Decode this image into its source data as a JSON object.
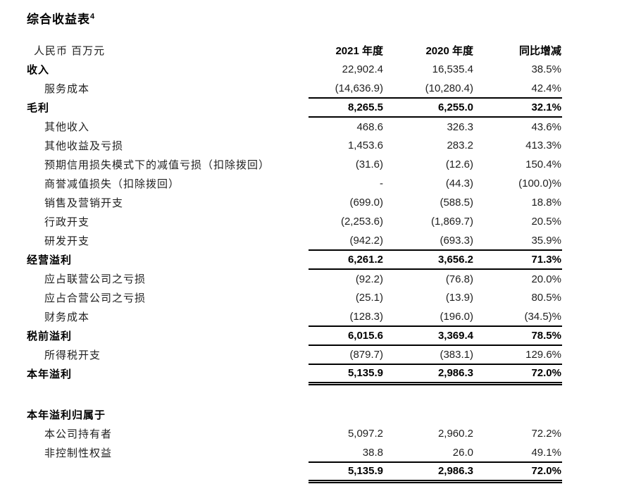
{
  "page": {
    "background": "#ffffff",
    "text_color": "#1f1f1f",
    "emphasis_color": "#000000",
    "rule_color": "#000000"
  },
  "title": {
    "text": "综合收益表",
    "superscript": "4"
  },
  "table": {
    "unit_label": "人民币 百万元",
    "columns": [
      "2021 年度",
      "2020 年度",
      "同比增减"
    ],
    "rows": [
      {
        "label": "收入",
        "v2021": "22,902.4",
        "v2020": "16,535.4",
        "yoy": "38.5%",
        "cls": "section",
        "rule": ""
      },
      {
        "label": "服务成本",
        "v2021": "(14,636.9)",
        "v2020": "(10,280.4)",
        "yoy": "42.4%",
        "cls": "sub",
        "rule": "single"
      },
      {
        "label": "毛利",
        "v2021": "8,265.5",
        "v2020": "6,255.0",
        "yoy": "32.1%",
        "cls": "total",
        "rule": "single"
      },
      {
        "label": "其他收入",
        "v2021": "468.6",
        "v2020": "326.3",
        "yoy": "43.6%",
        "cls": "sub",
        "rule": ""
      },
      {
        "label": "其他收益及亏损",
        "v2021": "1,453.6",
        "v2020": "283.2",
        "yoy": "413.3%",
        "cls": "sub",
        "rule": ""
      },
      {
        "label": "预期信用损失模式下的减值亏损（扣除拨回）",
        "v2021": "(31.6)",
        "v2020": "(12.6)",
        "yoy": "150.4%",
        "cls": "sub",
        "rule": ""
      },
      {
        "label": "商誉减值损失（扣除拨回）",
        "v2021": "-",
        "v2020": "(44.3)",
        "yoy": "(100.0)%",
        "cls": "sub",
        "rule": ""
      },
      {
        "label": "销售及营销开支",
        "v2021": "(699.0)",
        "v2020": "(588.5)",
        "yoy": "18.8%",
        "cls": "sub",
        "rule": ""
      },
      {
        "label": "行政开支",
        "v2021": "(2,253.6)",
        "v2020": "(1,869.7)",
        "yoy": "20.5%",
        "cls": "sub",
        "rule": ""
      },
      {
        "label": "研发开支",
        "v2021": "(942.2)",
        "v2020": "(693.3)",
        "yoy": "35.9%",
        "cls": "sub",
        "rule": "single"
      },
      {
        "label": "经营溢利",
        "v2021": "6,261.2",
        "v2020": "3,656.2",
        "yoy": "71.3%",
        "cls": "total",
        "rule": "single"
      },
      {
        "label": "应占联营公司之亏损",
        "v2021": "(92.2)",
        "v2020": "(76.8)",
        "yoy": "20.0%",
        "cls": "sub",
        "rule": ""
      },
      {
        "label": "应占合营公司之亏损",
        "v2021": "(25.1)",
        "v2020": "(13.9)",
        "yoy": "80.5%",
        "cls": "sub",
        "rule": ""
      },
      {
        "label": "财务成本",
        "v2021": "(128.3)",
        "v2020": "(196.0)",
        "yoy": "(34.5)%",
        "cls": "sub",
        "rule": "single"
      },
      {
        "label": "税前溢利",
        "v2021": "6,015.6",
        "v2020": "3,369.4",
        "yoy": "78.5%",
        "cls": "total",
        "rule": "single"
      },
      {
        "label": "所得税开支",
        "v2021": "(879.7)",
        "v2020": "(383.1)",
        "yoy": "129.6%",
        "cls": "sub",
        "rule": "single"
      },
      {
        "label": "本年溢利",
        "v2021": "5,135.9",
        "v2020": "2,986.3",
        "yoy": "72.0%",
        "cls": "total",
        "rule": "double"
      },
      {
        "label": "",
        "v2021": "",
        "v2020": "",
        "yoy": "",
        "cls": "spacer",
        "rule": ""
      },
      {
        "label": "本年溢利归属于",
        "v2021": "",
        "v2020": "",
        "yoy": "",
        "cls": "group",
        "rule": ""
      },
      {
        "label": "本公司持有者",
        "v2021": "5,097.2",
        "v2020": "2,960.2",
        "yoy": "72.2%",
        "cls": "sub",
        "rule": ""
      },
      {
        "label": "非控制性权益",
        "v2021": "38.8",
        "v2020": "26.0",
        "yoy": "49.1%",
        "cls": "sub",
        "rule": "single"
      },
      {
        "label": "",
        "v2021": "5,135.9",
        "v2020": "2,986.3",
        "yoy": "72.0%",
        "cls": "total",
        "rule": "double"
      }
    ]
  }
}
